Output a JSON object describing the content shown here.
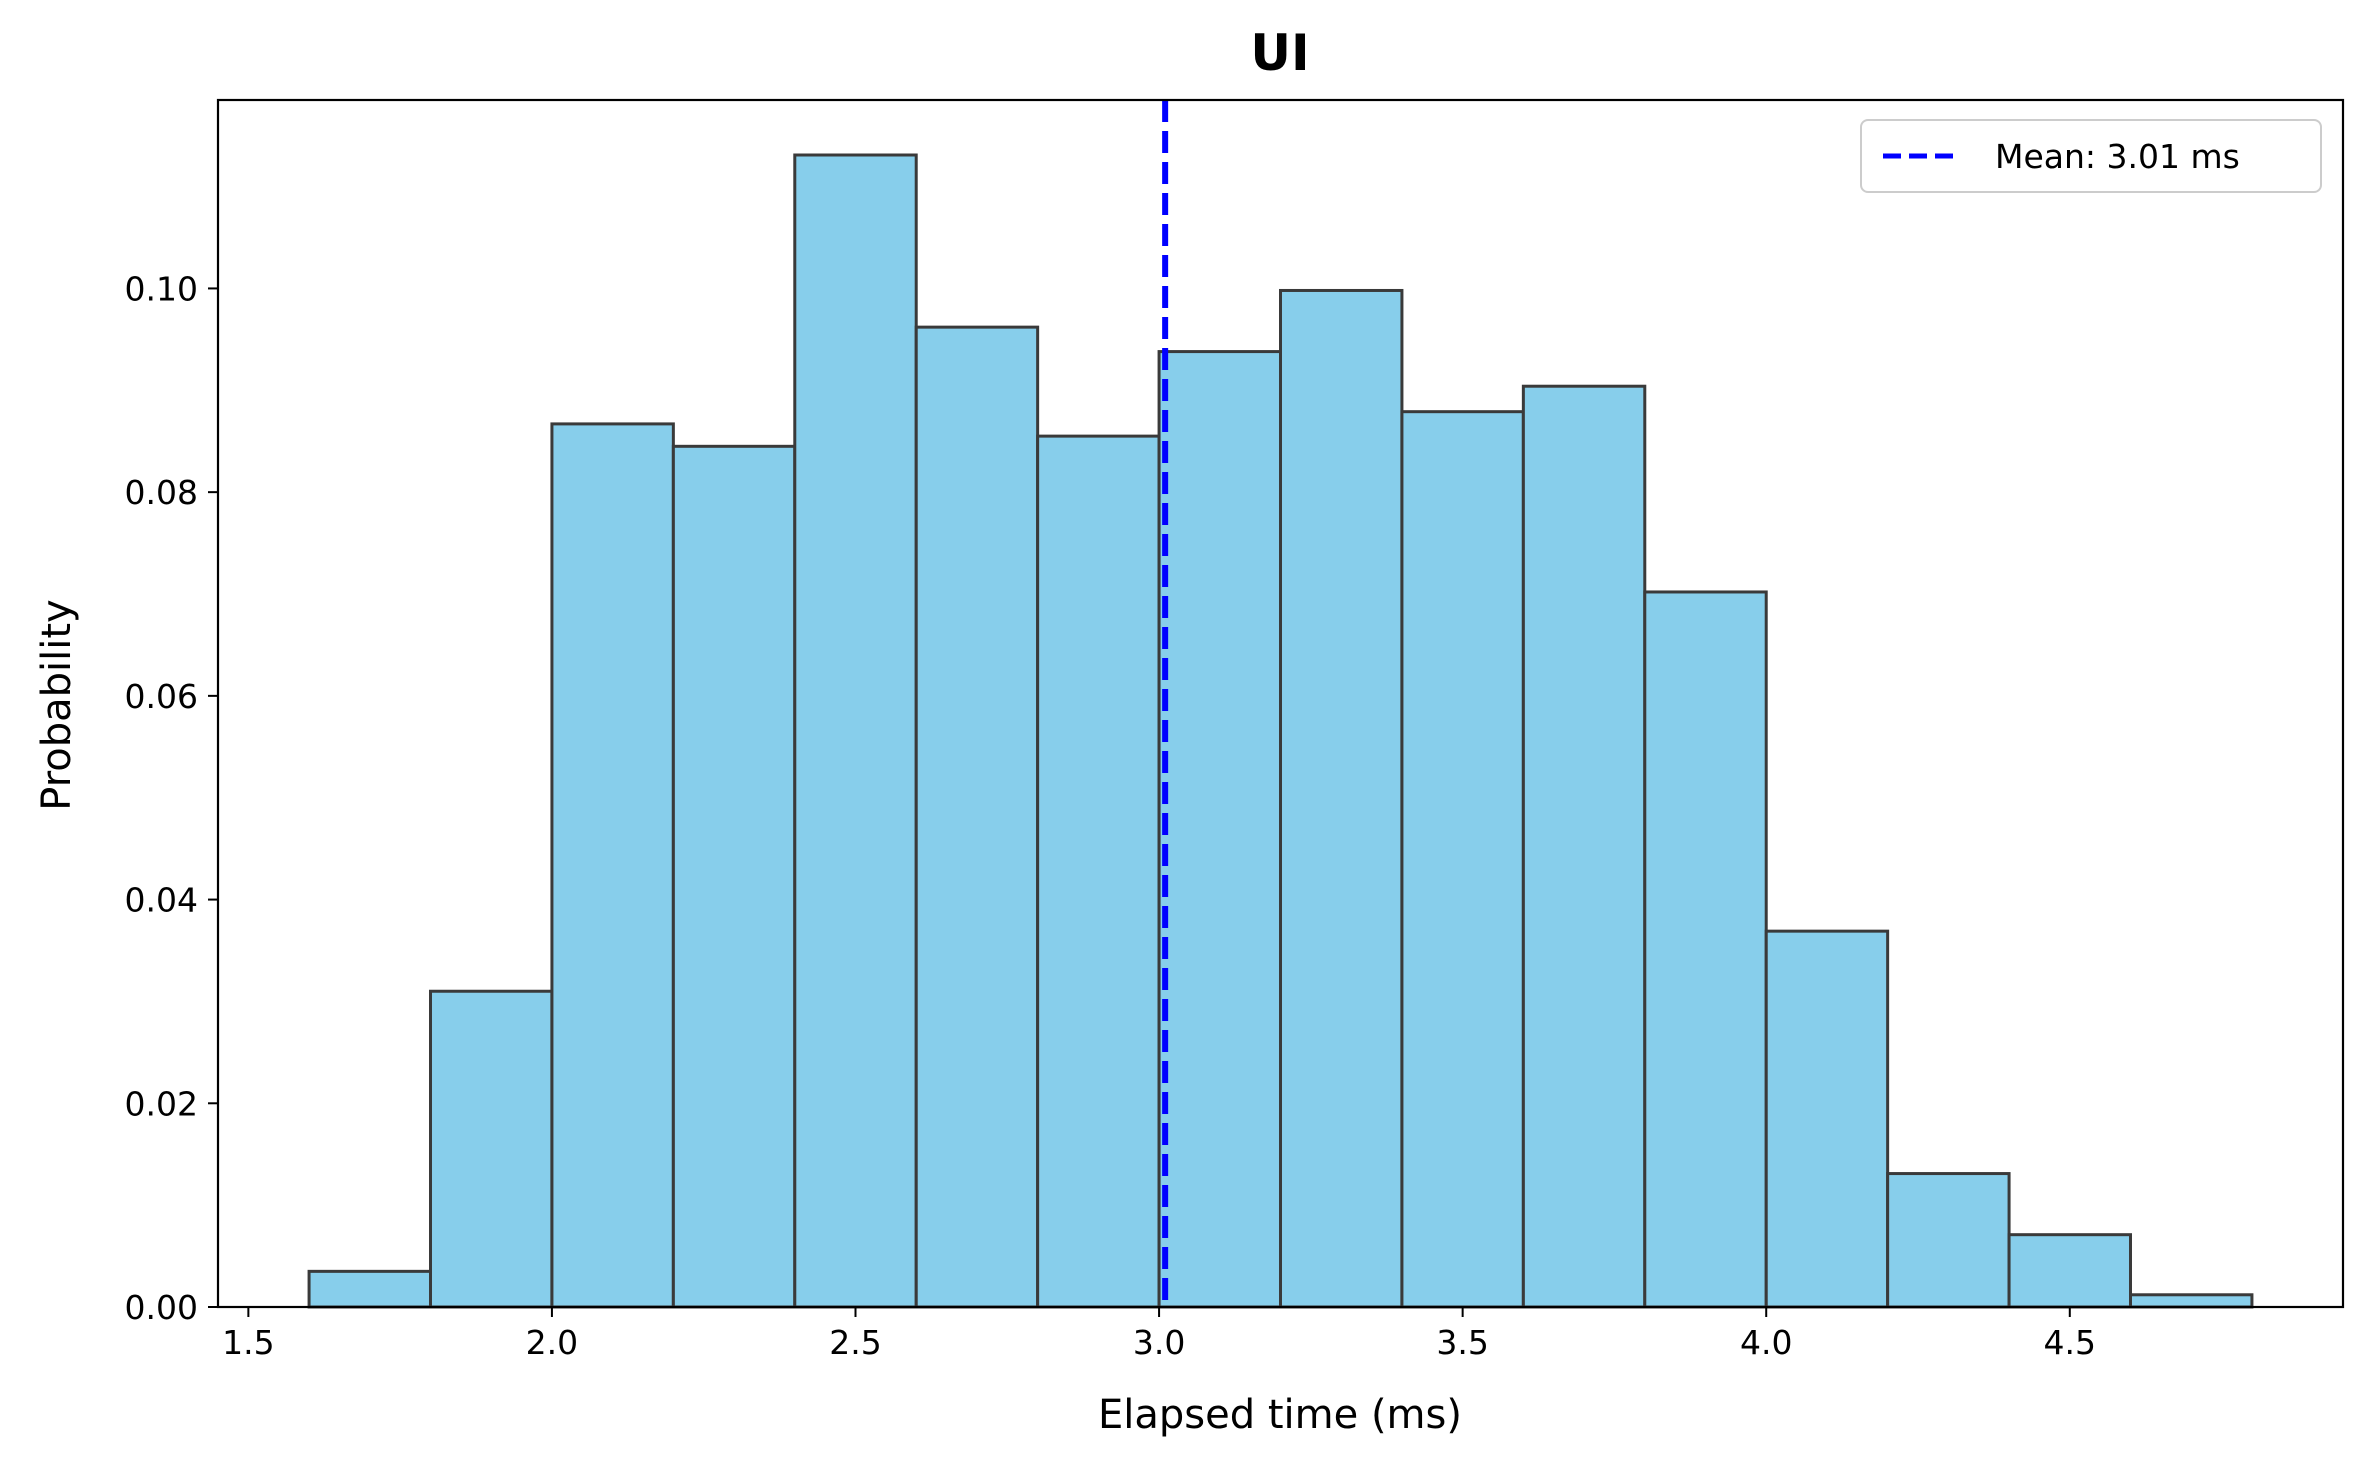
{
  "chart_data": {
    "type": "bar",
    "subtype": "histogram",
    "title": "UI",
    "xlabel": "Elapsed time (ms)",
    "ylabel": "Probability",
    "xlim": [
      1.45,
      4.95
    ],
    "ylim": [
      0,
      0.1185
    ],
    "xticks": [
      1.5,
      2.0,
      2.5,
      3.0,
      3.5,
      4.0,
      4.5
    ],
    "xtick_labels": [
      "1.5",
      "2.0",
      "2.5",
      "3.0",
      "3.5",
      "4.0",
      "4.5"
    ],
    "yticks": [
      0.0,
      0.02,
      0.04,
      0.06,
      0.08,
      0.1
    ],
    "ytick_labels": [
      "0.00",
      "0.02",
      "0.04",
      "0.06",
      "0.08",
      "0.10"
    ],
    "grid": false,
    "bar_color": "#87CEEB",
    "bar_edge_color": "#3a3a3a",
    "bins": [
      {
        "x0": 1.6,
        "x1": 1.8,
        "value": 0.0035
      },
      {
        "x0": 1.8,
        "x1": 2.0,
        "value": 0.031
      },
      {
        "x0": 2.0,
        "x1": 2.2,
        "value": 0.0867
      },
      {
        "x0": 2.2,
        "x1": 2.4,
        "value": 0.0845
      },
      {
        "x0": 2.4,
        "x1": 2.6,
        "value": 0.1131
      },
      {
        "x0": 2.6,
        "x1": 2.8,
        "value": 0.0962
      },
      {
        "x0": 2.8,
        "x1": 3.0,
        "value": 0.0855
      },
      {
        "x0": 3.0,
        "x1": 3.2,
        "value": 0.0938
      },
      {
        "x0": 3.2,
        "x1": 3.4,
        "value": 0.0998
      },
      {
        "x0": 3.4,
        "x1": 3.6,
        "value": 0.0879
      },
      {
        "x0": 3.6,
        "x1": 3.8,
        "value": 0.0904
      },
      {
        "x0": 3.8,
        "x1": 4.0,
        "value": 0.0702
      },
      {
        "x0": 4.0,
        "x1": 4.2,
        "value": 0.0369
      },
      {
        "x0": 4.2,
        "x1": 4.4,
        "value": 0.0131
      },
      {
        "x0": 4.4,
        "x1": 4.6,
        "value": 0.0071
      },
      {
        "x0": 4.6,
        "x1": 4.8,
        "value": 0.0012
      }
    ],
    "mean_line": {
      "x": 3.01,
      "color": "#0000ff",
      "style": "dashed",
      "label": "Mean: 3.01 ms"
    },
    "legend": {
      "placement": "top-right",
      "entries": [
        "Mean: 3.01 ms"
      ]
    }
  }
}
